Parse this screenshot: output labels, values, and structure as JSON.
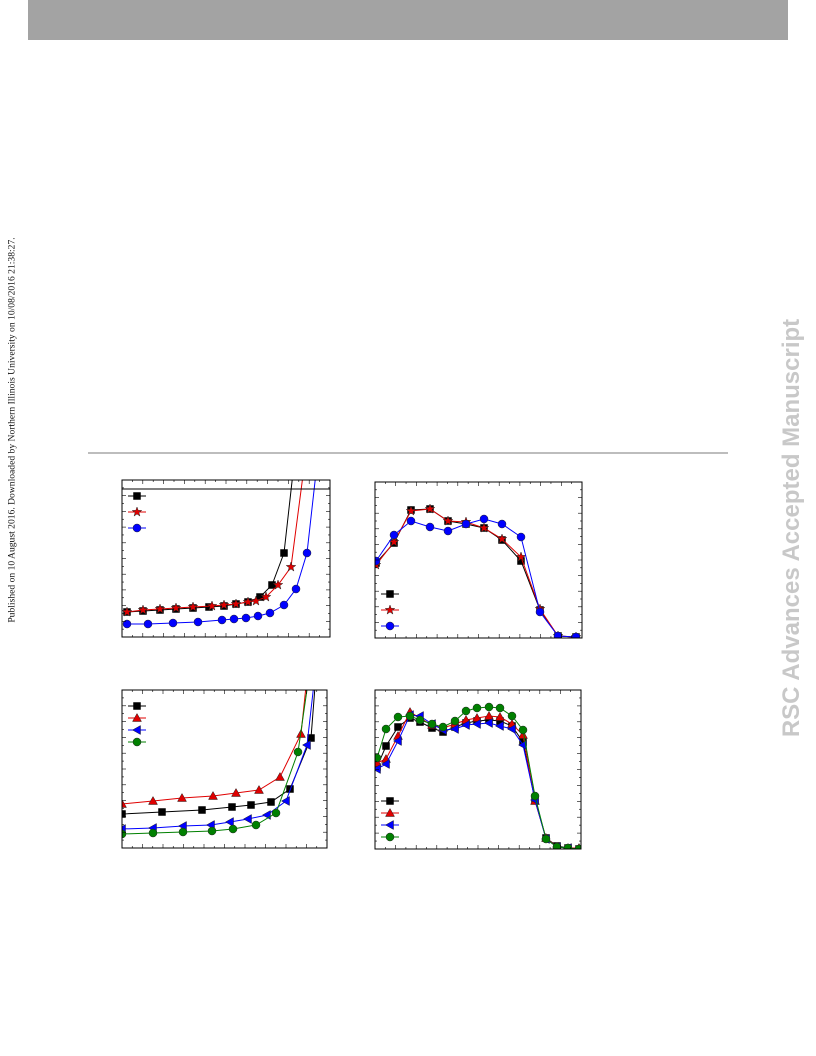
{
  "side_note": "Published on 10 August 2016. Downloaded by Northern Illinois University on 10/08/2016 21:38:27.",
  "watermark": "RSC Advances Accepted Manuscript",
  "chart_data": [
    {
      "type": "line",
      "xlim": [
        0,
        208
      ],
      "ylim": [
        0,
        157
      ],
      "legend": "upper left",
      "series": [
        {
          "color": "#000000",
          "marker": "square",
          "x": [
            5,
            21,
            38,
            54,
            71,
            87,
            102,
            114,
            126,
            138,
            150,
            162,
            175
          ],
          "values": [
            25,
            26,
            27,
            28,
            29,
            30,
            31,
            33,
            35,
            40,
            52,
            84,
            200
          ]
        },
        {
          "color": "#e00000",
          "marker": "star",
          "x": [
            5,
            21,
            38,
            54,
            71,
            90,
            102,
            114,
            126,
            134,
            144,
            156,
            169,
            186
          ],
          "values": [
            25,
            27,
            28,
            29,
            30,
            31,
            32,
            33,
            35,
            36,
            40,
            52,
            70,
            200
          ]
        },
        {
          "color": "#0000ff",
          "marker": "circle",
          "x": [
            5,
            26,
            51,
            76,
            100,
            112,
            124,
            136,
            148,
            162,
            174,
            185,
            198
          ],
          "values": [
            13,
            13,
            14,
            15,
            17,
            18,
            19,
            21,
            24,
            32,
            48,
            84,
            200
          ]
        }
      ]
    },
    {
      "type": "line",
      "xlim": [
        0,
        207
      ],
      "ylim": [
        0,
        156
      ],
      "legend": "lower left",
      "series": [
        {
          "color": "#000000",
          "marker": "square",
          "x": [
            1,
            19,
            36,
            55,
            73,
            91,
            109,
            127,
            146,
            165,
            183,
            201
          ],
          "values": [
            75,
            95,
            128,
            129,
            117,
            114,
            110,
            98,
            77,
            28,
            2,
            1
          ]
        },
        {
          "color": "#e00000",
          "marker": "star",
          "x": [
            1,
            19,
            36,
            55,
            73,
            91,
            109,
            127,
            146,
            165,
            183,
            201
          ],
          "values": [
            73,
            96,
            127,
            129,
            117,
            116,
            110,
            99,
            81,
            29,
            2,
            1
          ]
        },
        {
          "color": "#0000ff",
          "marker": "circle",
          "x": [
            1,
            19,
            36,
            55,
            73,
            91,
            109,
            127,
            146,
            165,
            183,
            201
          ],
          "values": [
            77,
            103,
            117,
            111,
            107,
            114,
            119,
            114,
            101,
            26,
            2,
            1
          ]
        }
      ]
    },
    {
      "type": "line",
      "xlim": [
        0,
        205
      ],
      "ylim": [
        0,
        158
      ],
      "legend": "upper left",
      "series": [
        {
          "color": "#000000",
          "marker": "square",
          "x": [
            0,
            40,
            80,
            110,
            129,
            149,
            168,
            189,
            196
          ],
          "values": [
            34,
            36,
            38,
            41,
            43,
            46,
            59,
            110,
            200
          ]
        },
        {
          "color": "#e00000",
          "marker": "triangle",
          "x": [
            0,
            31,
            60,
            91,
            114,
            137,
            158,
            179,
            188
          ],
          "values": [
            44,
            47,
            50,
            52,
            55,
            58,
            71,
            114,
            200
          ]
        },
        {
          "color": "#0000ff",
          "marker": "triangle-left",
          "x": [
            0,
            31,
            61,
            89,
            108,
            126,
            145,
            164,
            185,
            196
          ],
          "values": [
            19,
            20,
            22,
            23,
            26,
            29,
            33,
            47,
            103,
            200
          ]
        },
        {
          "color": "#008000",
          "marker": "circle",
          "x": [
            0,
            31,
            61,
            90,
            111,
            134,
            154,
            176,
            191
          ],
          "values": [
            14,
            15,
            16,
            17,
            19,
            23,
            35,
            96,
            200
          ]
        }
      ]
    },
    {
      "type": "line",
      "xlim": [
        0,
        206
      ],
      "ylim": [
        0,
        159
      ],
      "legend": "lower left",
      "series": [
        {
          "color": "#000000",
          "marker": "square",
          "x": [
            2,
            11,
            23,
            35,
            45,
            57,
            68,
            80,
            91,
            102,
            114,
            125,
            137,
            148,
            160,
            171,
            182,
            193,
            204
          ],
          "values": [
            82,
            103,
            122,
            131,
            127,
            121,
            117,
            122,
            126,
            128,
            129,
            128,
            123,
            107,
            49,
            11,
            3,
            1,
            0
          ]
        },
        {
          "color": "#e00000",
          "marker": "triangle",
          "x": [
            2,
            11,
            23,
            35,
            45,
            57,
            68,
            80,
            91,
            102,
            114,
            125,
            137,
            148,
            160,
            171,
            182,
            193,
            204
          ],
          "values": [
            86,
            90,
            113,
            137,
            131,
            124,
            121,
            125,
            129,
            131,
            133,
            132,
            125,
            114,
            48,
            11,
            2,
            1,
            1
          ]
        },
        {
          "color": "#0000ff",
          "marker": "triangle-left",
          "x": [
            2,
            11,
            23,
            35,
            45,
            57,
            68,
            80,
            91,
            102,
            114,
            125,
            137,
            148,
            160,
            171,
            182,
            193,
            204
          ],
          "values": [
            80,
            85,
            108,
            134,
            133,
            125,
            119,
            120,
            124,
            125,
            126,
            123,
            120,
            104,
            49,
            10,
            2,
            1,
            0
          ]
        },
        {
          "color": "#008000",
          "marker": "circle",
          "x": [
            2,
            11,
            23,
            35,
            45,
            57,
            68,
            80,
            91,
            102,
            114,
            125,
            137,
            148,
            160,
            171,
            182,
            193,
            204
          ],
          "values": [
            91,
            120,
            132,
            133,
            129,
            125,
            122,
            128,
            138,
            141,
            142,
            141,
            133,
            119,
            53,
            10,
            2,
            1,
            0
          ]
        }
      ]
    }
  ]
}
